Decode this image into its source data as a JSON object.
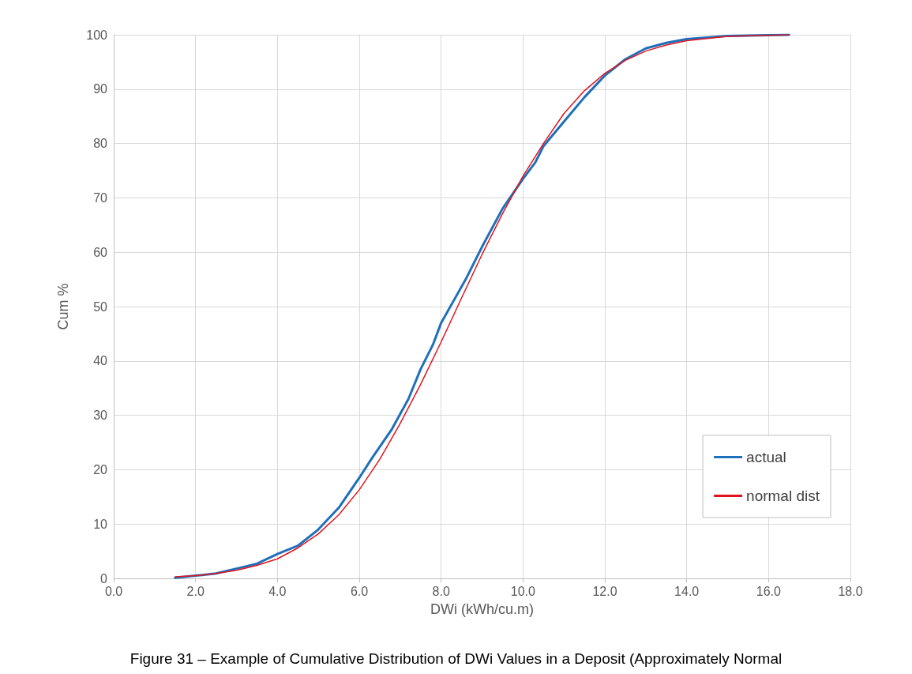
{
  "chart_data": {
    "type": "line",
    "xlabel": "DWi (kWh/cu.m)",
    "ylabel": "Cum %",
    "xlim": [
      0,
      18
    ],
    "xticks": [
      {
        "value": 0,
        "label": "0.0"
      },
      {
        "value": 2,
        "label": "2.0"
      },
      {
        "value": 4,
        "label": "4.0"
      },
      {
        "value": 6,
        "label": "6.0"
      },
      {
        "value": 8,
        "label": "8.0"
      },
      {
        "value": 10,
        "label": "10.0"
      },
      {
        "value": 12,
        "label": "12.0"
      },
      {
        "value": 14,
        "label": "14.0"
      },
      {
        "value": 16,
        "label": "16.0"
      },
      {
        "value": 18,
        "label": "18.0"
      }
    ],
    "ylim": [
      0,
      100
    ],
    "yticks": [
      0,
      10,
      20,
      30,
      40,
      50,
      60,
      70,
      80,
      90,
      100
    ],
    "grid": true,
    "legend": "bottom right",
    "marker": "none",
    "line_style": "solid",
    "annotations": [
      "Figure 31 – Example of Cumulative Distribution of DWi Values in a Deposit (Approximately Normal"
    ],
    "series": [
      {
        "name": "actual",
        "color": "#1f6fba",
        "x": [
          1.5,
          2.0,
          2.5,
          3.0,
          3.5,
          4.0,
          4.5,
          5.0,
          5.5,
          6.0,
          6.3,
          6.8,
          7.2,
          7.5,
          7.8,
          8.0,
          8.3,
          8.6,
          9.0,
          9.5,
          10.0,
          10.3,
          10.5,
          11.0,
          11.5,
          12.0,
          12.5,
          13.0,
          13.5,
          14.0,
          15.0,
          16.5
        ],
        "values": [
          0.1,
          0.5,
          0.9,
          1.8,
          2.7,
          4.5,
          6.0,
          9.0,
          13,
          18.5,
          22,
          27.5,
          33,
          38.5,
          43,
          47,
          51,
          55,
          61,
          68,
          73.5,
          76.5,
          79.5,
          84,
          88.5,
          92.5,
          95.5,
          97.5,
          98.5,
          99.2,
          99.8,
          100
        ]
      },
      {
        "name": "normal dist",
        "color": "#e0141e",
        "x": [
          1.5,
          2.0,
          2.5,
          3.0,
          3.5,
          4.0,
          4.5,
          5.0,
          5.5,
          6.0,
          6.5,
          7.0,
          7.5,
          8.0,
          8.5,
          9.0,
          9.5,
          10.0,
          10.5,
          11.0,
          11.5,
          12.0,
          12.5,
          13.0,
          13.5,
          14.0,
          15.0,
          16.5
        ],
        "values": [
          0.3,
          0.5,
          0.9,
          1.5,
          2.4,
          3.6,
          5.6,
          8.2,
          11.7,
          16.3,
          21.9,
          28.5,
          35.7,
          43.5,
          51.6,
          59.6,
          67.1,
          74,
          80,
          85.5,
          89.7,
          92.9,
          95.3,
          97.0,
          98.1,
          98.9,
          99.7,
          100
        ]
      }
    ]
  }
}
